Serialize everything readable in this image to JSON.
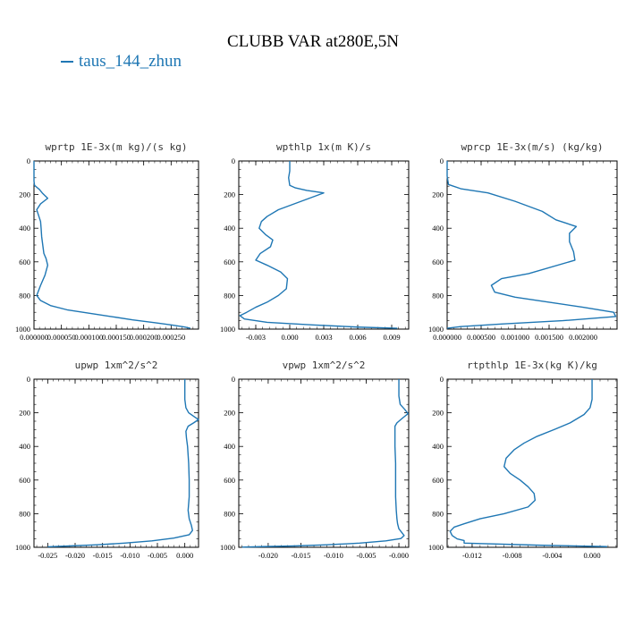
{
  "figure": {
    "title": "CLUBB VAR at280E,5N",
    "legend": "taus_144_zhun",
    "line_color": "#1f77b4"
  },
  "chart_data": [
    {
      "type": "line",
      "title": "wprtp  1E-3x(m kg)/(s kg)",
      "xlim": [
        0.0,
        0.0003
      ],
      "ylim": [
        1000,
        0
      ],
      "x_ticks": [
        0.0,
        5e-05,
        0.0001,
        0.00015,
        0.0002,
        0.00025
      ],
      "x_tick_labels": [
        "0.000000",
        "0.000050",
        "0.000100",
        "0.000150",
        "0.000200",
        "0.000250"
      ],
      "y_ticks": [
        0,
        200,
        400,
        600,
        800,
        1000
      ],
      "y_tick_labels": [
        "0",
        "200",
        "400",
        "600",
        "800",
        "1000"
      ],
      "series": [
        {
          "x": [
            0.0,
            0.0,
            1e-06,
            1e-05,
            1.5e-05,
            2.5e-05,
            1.2e-05,
            5e-06,
            8e-06,
            1.2e-05,
            1.3e-05,
            1.4e-05,
            1.6e-05,
            1.8e-05,
            2.2e-05,
            2.5e-05,
            2e-05,
            1.2e-05,
            5e-06,
            1.2e-05,
            3e-05,
            6e-05,
            0.0001,
            0.00014,
            0.00018,
            0.00022,
            0.00025,
            0.000275,
            0.000285
          ],
          "y": [
            0,
            120,
            145,
            170,
            190,
            222,
            255,
            290,
            320,
            360,
            400,
            450,
            500,
            550,
            580,
            620,
            680,
            740,
            800,
            830,
            860,
            885,
            905,
            925,
            945,
            962,
            975,
            988,
            995
          ]
        }
      ]
    },
    {
      "type": "line",
      "title": "wpthlp  1x(m K)/s",
      "xlim": [
        -0.0045,
        0.0105
      ],
      "ylim": [
        1000,
        0
      ],
      "x_ticks": [
        -0.003,
        0.0,
        0.003,
        0.006,
        0.009
      ],
      "x_tick_labels": [
        "-0.003",
        "0.000",
        "0.003",
        "0.006",
        "0.009"
      ],
      "y_ticks": [
        0,
        200,
        400,
        600,
        800,
        1000
      ],
      "y_tick_labels": [
        "0",
        "200",
        "400",
        "600",
        "800",
        "1000"
      ],
      "series": [
        {
          "x": [
            0.0,
            0.0,
            -0.0001,
            0.0,
            0.0005,
            0.0015,
            0.003,
            0.001,
            -0.001,
            -0.002,
            -0.0025,
            -0.0027,
            -0.0021,
            -0.0015,
            -0.0017,
            -0.0026,
            -0.003,
            -0.002,
            -0.0008,
            -0.0002,
            -0.0003,
            -0.001,
            -0.002,
            -0.003,
            -0.0038,
            -0.0044,
            -0.004,
            -0.002,
            0.002,
            0.006,
            0.0095
          ],
          "y": [
            0,
            60,
            100,
            145,
            160,
            175,
            190,
            240,
            290,
            330,
            360,
            400,
            440,
            470,
            510,
            550,
            590,
            620,
            660,
            700,
            760,
            800,
            840,
            870,
            900,
            920,
            940,
            960,
            975,
            988,
            995
          ]
        }
      ]
    },
    {
      "type": "line",
      "title": "wprcp  1E-3x(m/s) (kg/kg)",
      "xlim": [
        0.0,
        0.0025
      ],
      "ylim": [
        1000,
        0
      ],
      "x_ticks": [
        0.0,
        0.0005,
        0.001,
        0.0015,
        0.002
      ],
      "x_tick_labels": [
        "0.000000",
        "0.000500",
        "0.001000",
        "0.001500",
        "0.002000"
      ],
      "y_ticks": [
        0,
        200,
        400,
        600,
        800,
        1000
      ],
      "y_tick_labels": [
        "0",
        "200",
        "400",
        "600",
        "800",
        "1000"
      ],
      "series": [
        {
          "x": [
            0.0,
            0.0,
            2e-05,
            0.0002,
            0.0006,
            0.001,
            0.0014,
            0.0016,
            0.0019,
            0.0018,
            0.0018,
            0.00186,
            0.00188,
            0.0012,
            0.0008,
            0.00065,
            0.0007,
            0.001,
            0.0015,
            0.002,
            0.00245,
            0.00248,
            0.0017,
            0.0008,
            0.0002,
            0.0
          ],
          "y": [
            0,
            90,
            140,
            165,
            190,
            240,
            300,
            350,
            390,
            430,
            480,
            540,
            590,
            670,
            700,
            740,
            780,
            810,
            840,
            870,
            900,
            925,
            950,
            970,
            985,
            995
          ]
        }
      ]
    },
    {
      "type": "line",
      "title": "upwp  1xm^2/s^2",
      "xlim": [
        -0.0275,
        0.0025
      ],
      "ylim": [
        1000,
        0
      ],
      "x_ticks": [
        -0.025,
        -0.02,
        -0.015,
        -0.01,
        -0.005,
        0.0
      ],
      "x_tick_labels": [
        "-0.025",
        "-0.020",
        "-0.015",
        "-0.010",
        "-0.005",
        "0.000"
      ],
      "y_ticks": [
        0,
        200,
        400,
        600,
        800,
        1000
      ],
      "y_tick_labels": [
        "0",
        "200",
        "400",
        "600",
        "800",
        "1000"
      ],
      "series": [
        {
          "x": [
            0.0,
            0.0,
            0.0002,
            0.0007,
            0.0018,
            0.0025,
            0.0016,
            0.0006,
            0.0002,
            0.0003,
            0.0005,
            0.0007,
            0.0008,
            0.0008,
            0.0006,
            0.0008,
            0.0012,
            0.0014,
            0.0008,
            -0.002,
            -0.006,
            -0.011,
            -0.016,
            -0.021,
            -0.025
          ],
          "y": [
            0,
            120,
            170,
            200,
            225,
            240,
            260,
            280,
            310,
            350,
            400,
            500,
            600,
            700,
            780,
            830,
            870,
            900,
            925,
            945,
            962,
            975,
            985,
            992,
            997
          ]
        }
      ]
    },
    {
      "type": "line",
      "title": "vpwp  1xm^2/s^2",
      "xlim": [
        -0.0245,
        0.0015
      ],
      "ylim": [
        1000,
        0
      ],
      "x_ticks": [
        -0.02,
        -0.015,
        -0.01,
        -0.005,
        0.0
      ],
      "x_tick_labels": [
        "-0.020",
        "-0.015",
        "-0.010",
        "-0.005",
        "-0.000"
      ],
      "y_ticks": [
        0,
        200,
        400,
        600,
        800,
        1000
      ],
      "y_tick_labels": [
        "0",
        "200",
        "400",
        "600",
        "800",
        "1000"
      ],
      "series": [
        {
          "x": [
            0.0,
            0.0,
            0.0002,
            0.0009,
            0.0014,
            0.0006,
            -0.0003,
            -0.0006,
            -0.0006,
            -0.0006,
            -0.0005,
            -0.0005,
            -0.0005,
            -0.0004,
            -0.0003,
            -0.0002,
            0.0,
            0.0004,
            0.0008,
            0.0003,
            -0.002,
            -0.006,
            -0.011,
            -0.016,
            -0.021,
            -0.024
          ],
          "y": [
            0,
            100,
            150,
            180,
            205,
            230,
            260,
            280,
            320,
            400,
            500,
            600,
            700,
            780,
            830,
            860,
            890,
            910,
            930,
            948,
            962,
            975,
            985,
            992,
            996,
            999
          ]
        }
      ]
    },
    {
      "type": "line",
      "title": "rtpthlp  1E-3x(kg K)/kg",
      "xlim": [
        -0.0145,
        0.0025
      ],
      "ylim": [
        1000,
        0
      ],
      "x_ticks": [
        -0.012,
        -0.008,
        -0.004,
        0.0
      ],
      "x_tick_labels": [
        "-0.012",
        "-0.008",
        "-0.004",
        "0.000"
      ],
      "y_ticks": [
        0,
        200,
        400,
        600,
        800,
        1000
      ],
      "y_tick_labels": [
        "0",
        "200",
        "400",
        "600",
        "800",
        "1000"
      ],
      "series": [
        {
          "x": [
            0.0,
            0.0,
            -0.0002,
            -0.0008,
            -0.0022,
            -0.0038,
            -0.0055,
            -0.0068,
            -0.0078,
            -0.0086,
            -0.0088,
            -0.0082,
            -0.0072,
            -0.0064,
            -0.0058,
            -0.0057,
            -0.0064,
            -0.0088,
            -0.0112,
            -0.0128,
            -0.0138,
            -0.0142,
            -0.014,
            -0.0135,
            -0.0128,
            -0.0128,
            -0.005,
            0.0015
          ],
          "y": [
            0,
            120,
            170,
            210,
            260,
            300,
            340,
            380,
            420,
            470,
            520,
            560,
            600,
            640,
            680,
            720,
            760,
            800,
            830,
            860,
            880,
            905,
            930,
            950,
            960,
            975,
            988,
            996
          ]
        }
      ]
    }
  ]
}
